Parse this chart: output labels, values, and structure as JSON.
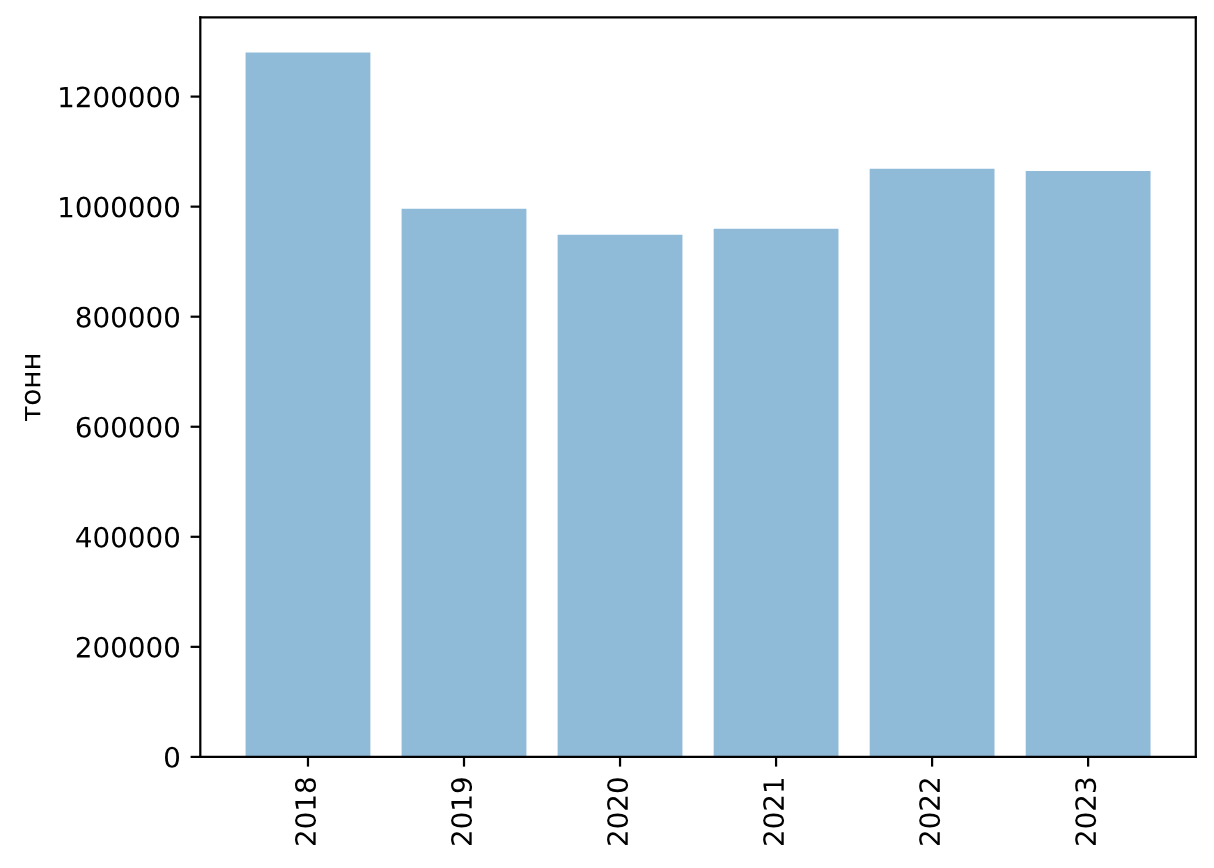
{
  "chart_data": {
    "type": "bar",
    "ylabel": "тонн",
    "categories": [
      "2018",
      "2019",
      "2020",
      "2021",
      "2022",
      "2023"
    ],
    "values": [
      1280000,
      996000,
      949000,
      960000,
      1069000,
      1065000
    ],
    "color": "#8fbbd9",
    "ylim": [
      0,
      1344000
    ],
    "yticks": [
      0,
      200000,
      400000,
      600000,
      800000,
      1000000,
      1200000
    ],
    "grid": false
  }
}
